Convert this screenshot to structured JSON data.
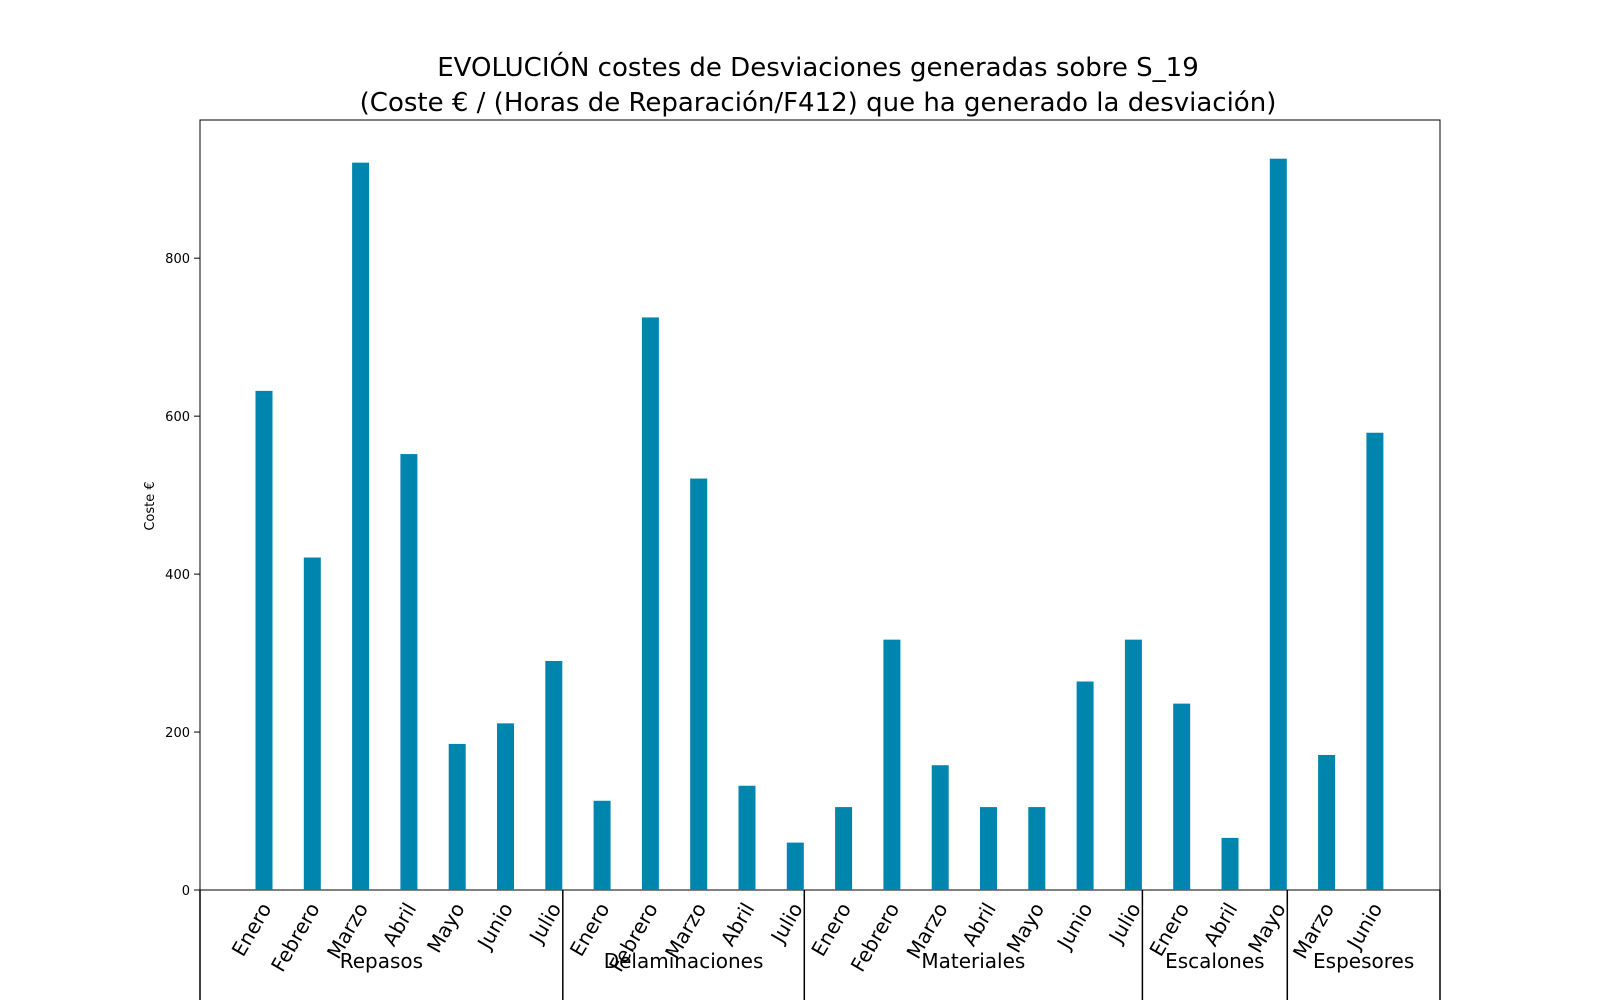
{
  "chart_data": {
    "type": "bar",
    "title": "EVOLUCIÓN costes de Desviaciones  generadas  sobre S_19",
    "subtitle": "(Coste € / (Horas de Reparación/F412) que ha generado la desviación)",
    "xlabel": "",
    "ylabel": "Coste €",
    "ylim": [
      0,
      975
    ],
    "yticks": [
      0,
      200,
      400,
      600,
      800
    ],
    "grid": false,
    "bar_color": "#0086AE",
    "categories": [
      "Enero",
      "Febrero",
      "Marzo",
      "Abril",
      "Mayo",
      "Junio",
      "Julio",
      "Enero",
      "Febrero",
      "Marzo",
      "Abril",
      "Julio",
      "Enero",
      "Febrero",
      "Marzo",
      "Abril",
      "Mayo",
      "Junio",
      "Julio",
      "Enero",
      "Abril",
      "Mayo",
      "Marzo",
      "Junio"
    ],
    "values": [
      632,
      421,
      921,
      552,
      185,
      211,
      290,
      113,
      725,
      521,
      132,
      60,
      105,
      317,
      158,
      105,
      105,
      264,
      317,
      236,
      66,
      926,
      171,
      579
    ],
    "groups": [
      {
        "name": "Repasos",
        "count": 7
      },
      {
        "name": "Delaminaciones",
        "count": 5
      },
      {
        "name": "Materiales",
        "count": 7
      },
      {
        "name": "Escalones",
        "count": 3
      },
      {
        "name": "Espesores",
        "count": 2
      }
    ]
  }
}
